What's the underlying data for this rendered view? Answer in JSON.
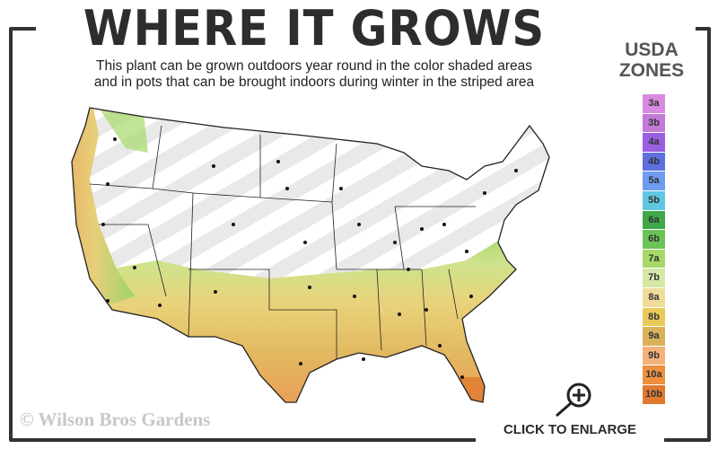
{
  "title": "WHERE IT GROWS",
  "subtitle_line1": "This plant can be grown outdoors year round in the color shaded areas",
  "subtitle_line2": "and in pots that can be brought indoors during winter in the striped area",
  "legend": {
    "title_line1": "USDA",
    "title_line2": "ZONES",
    "zones": [
      {
        "label": "3a",
        "color": "#d78ae0"
      },
      {
        "label": "3b",
        "color": "#c27bd6"
      },
      {
        "label": "4a",
        "color": "#9a5fe0"
      },
      {
        "label": "4b",
        "color": "#5e6fe0"
      },
      {
        "label": "5a",
        "color": "#6d9cf0"
      },
      {
        "label": "5b",
        "color": "#5fc8e0"
      },
      {
        "label": "6a",
        "color": "#3fa84a"
      },
      {
        "label": "6b",
        "color": "#6cc458"
      },
      {
        "label": "7a",
        "color": "#a6d86a"
      },
      {
        "label": "7b",
        "color": "#d6e8a6"
      },
      {
        "label": "8a",
        "color": "#efdc9a"
      },
      {
        "label": "8b",
        "color": "#e9c95a"
      },
      {
        "label": "9a",
        "color": "#d9b25a"
      },
      {
        "label": "9b",
        "color": "#f3b27a"
      },
      {
        "label": "10a",
        "color": "#ec9040"
      },
      {
        "label": "10b",
        "color": "#e07a30"
      }
    ]
  },
  "watermark": "© Wilson Bros Gardens",
  "enlarge_label": "CLICK TO ENLARGE",
  "icons": {
    "enlarge": "magnifier-plus-icon"
  }
}
